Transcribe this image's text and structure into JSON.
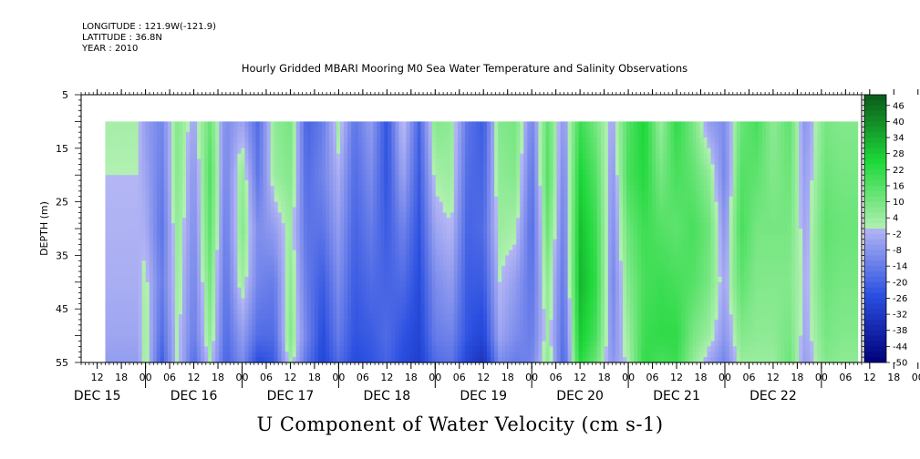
{
  "header": {
    "longitude": "LONGITUDE : 121.9W(-121.9)",
    "latitude": "LATITUDE : 36.8N",
    "year": "YEAR : 2010"
  },
  "title": "Hourly Gridded MBARI Mooring M0 Sea Water Temperature and Salinity Observations",
  "footer": "U Component of Water Velocity (cm s-1)",
  "colors": {
    "negative_max": "#00007a",
    "negative_mid": "#2a4fe0",
    "negative_min": "#b4b6f4",
    "positive_min": "#b2f0b2",
    "positive_mid": "#1ed83a",
    "positive_max": "#0a5a1a"
  },
  "chart_data": {
    "type": "heatmap",
    "title": "Hourly Gridded MBARI Mooring M0 Sea Water Temperature and Salinity Observations",
    "xlabel": "",
    "ylabel": "DEPTH (m)",
    "zlabel": "U Component of Water Velocity (cm s-1)",
    "ylim": [
      55,
      5
    ],
    "xlim": [
      "2010-12-14T08:00",
      "2010-12-22T10:00"
    ],
    "data_range": {
      "x": [
        "2010-12-14T14:00",
        "2010-12-22T09:00"
      ],
      "y": [
        10,
        55
      ]
    },
    "y_ticks": [
      5,
      15,
      25,
      35,
      45,
      55
    ],
    "x_hour_ticks": [
      "12",
      "18",
      "00",
      "06",
      "12",
      "18",
      "00",
      "06",
      "12",
      "18",
      "00",
      "06",
      "12",
      "18",
      "00",
      "06",
      "12",
      "18",
      "00",
      "06",
      "12",
      "18",
      "00",
      "06",
      "12",
      "18",
      "00",
      "06",
      "12",
      "18",
      "00",
      "06",
      "12",
      "18",
      "00",
      "06",
      "12",
      "18",
      "00",
      "06"
    ],
    "x_day_labels": [
      "DEC 15",
      "DEC 16",
      "DEC 17",
      "DEC 18",
      "DEC 19",
      "DEC 20",
      "DEC 21",
      "DEC 22"
    ],
    "colorbar_levels": [
      "46",
      "40",
      "34",
      "28",
      "22",
      "16",
      "10",
      "4",
      "-2",
      "-8",
      "-14",
      "-20",
      "-26",
      "-32",
      "-38",
      "-44",
      "-50"
    ],
    "z_range": [
      -50,
      50
    ],
    "x_times_hours": [
      14,
      16,
      20,
      24,
      28,
      32,
      36,
      40,
      44,
      48,
      52,
      56,
      60,
      64,
      68,
      72,
      76,
      80,
      84,
      88,
      92,
      96,
      100,
      104,
      108,
      112,
      116,
      120,
      124,
      128,
      132,
      136,
      140,
      144,
      148,
      152,
      156,
      160,
      164,
      168,
      172,
      176,
      180,
      185,
      189
    ],
    "y_depths": [
      10,
      20,
      30,
      40,
      50,
      55
    ],
    "values": [
      [
        2,
        0,
        -1,
        -2,
        -4,
        -6
      ],
      [
        -6,
        -4,
        -2,
        2,
        4,
        4
      ],
      [
        -12,
        -14,
        -16,
        -14,
        -18,
        -22
      ],
      [
        8,
        8,
        6,
        4,
        2,
        2
      ],
      [
        -4,
        -8,
        -10,
        -12,
        -14,
        -18
      ],
      [
        12,
        16,
        14,
        10,
        6,
        2
      ],
      [
        -10,
        -12,
        -14,
        -16,
        -18,
        -20
      ],
      [
        -4,
        6,
        8,
        4,
        -6,
        -10
      ],
      [
        -18,
        -16,
        -10,
        -12,
        -18,
        -26
      ],
      [
        6,
        4,
        -6,
        -14,
        -18,
        -22
      ],
      [
        10,
        8,
        4,
        6,
        8,
        4
      ],
      [
        -20,
        -18,
        -16,
        -14,
        -12,
        -16
      ],
      [
        -14,
        -12,
        -16,
        -22,
        -26,
        -28
      ],
      [
        4,
        -2,
        -6,
        -10,
        -14,
        -18
      ],
      [
        -16,
        -18,
        -20,
        -22,
        -24,
        -26
      ],
      [
        -6,
        -10,
        -14,
        -18,
        -22,
        -24
      ],
      [
        -24,
        -24,
        -22,
        -20,
        -18,
        -20
      ],
      [
        2,
        -4,
        -12,
        -18,
        -24,
        -26
      ],
      [
        -20,
        -22,
        -24,
        -26,
        -28,
        -30
      ],
      [
        8,
        2,
        -4,
        -10,
        -14,
        -18
      ],
      [
        6,
        4,
        0,
        -6,
        -12,
        -16
      ],
      [
        -16,
        -18,
        -20,
        -22,
        -24,
        -28
      ],
      [
        -22,
        -20,
        -18,
        -22,
        -28,
        -34
      ],
      [
        8,
        6,
        4,
        0,
        -4,
        -10
      ],
      [
        10,
        8,
        2,
        -6,
        -10,
        -14
      ],
      [
        -12,
        -16,
        -18,
        -16,
        -14,
        -12
      ],
      [
        14,
        16,
        12,
        6,
        4,
        6
      ],
      [
        -8,
        -12,
        -14,
        -16,
        -18,
        -20
      ],
      [
        20,
        26,
        30,
        32,
        28,
        24
      ],
      [
        10,
        16,
        20,
        22,
        18,
        12
      ],
      [
        -4,
        -8,
        -10,
        -12,
        -10,
        -8
      ],
      [
        16,
        18,
        12,
        8,
        4,
        2
      ],
      [
        26,
        24,
        20,
        18,
        20,
        22
      ],
      [
        4,
        10,
        16,
        20,
        22,
        18
      ],
      [
        22,
        18,
        14,
        18,
        22,
        20
      ],
      [
        10,
        14,
        18,
        16,
        10,
        6
      ],
      [
        -6,
        6,
        12,
        10,
        4,
        -4
      ],
      [
        -10,
        -12,
        -8,
        -4,
        -8,
        -12
      ],
      [
        12,
        16,
        18,
        14,
        8,
        4
      ],
      [
        18,
        14,
        10,
        8,
        6,
        4
      ],
      [
        6,
        8,
        10,
        8,
        6,
        4
      ],
      [
        14,
        12,
        10,
        8,
        10,
        12
      ],
      [
        -8,
        -6,
        -4,
        -2,
        -4,
        -6
      ],
      [
        10,
        12,
        14,
        12,
        10,
        8
      ],
      [
        8,
        10,
        12,
        10,
        8,
        6
      ]
    ]
  }
}
